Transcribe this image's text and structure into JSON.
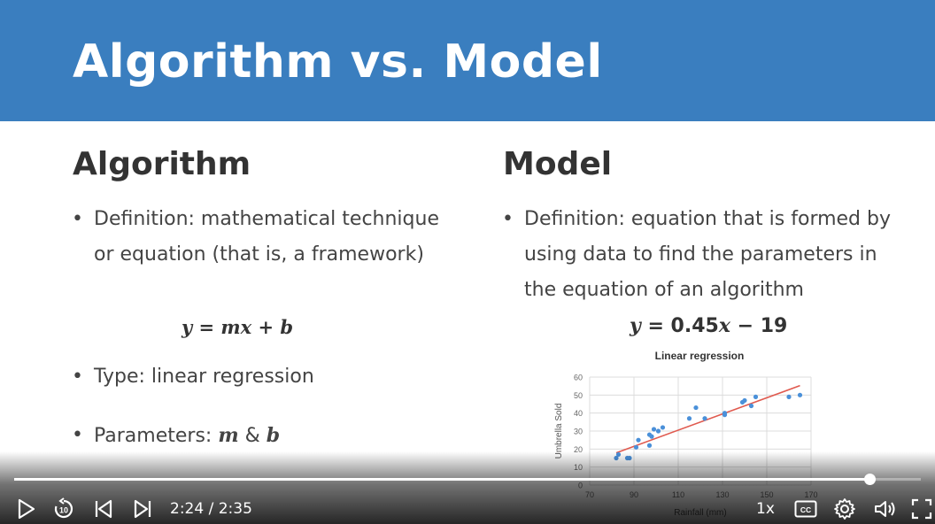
{
  "slide": {
    "title": "Algorithm vs. Model",
    "algorithm": {
      "heading": "Algorithm",
      "definition_line1": "Definition: mathematical technique",
      "definition_line2": "or equation (that is, a framework)",
      "equation": "y = mx + b",
      "type": "Type: linear regression",
      "parameters_prefix": "Parameters: ",
      "parameters_m": "m",
      "parameters_amp": " & ",
      "parameters_b": "b"
    },
    "model": {
      "heading": "Model",
      "definition_line1": "Definition: equation that is formed by",
      "definition_line2": "using data to find the parameters in",
      "definition_line3": "the equation of an algorithm",
      "equation_y": "y",
      "equation_mid": " = 0.45",
      "equation_x": "x",
      "equation_end": " − 19"
    }
  },
  "chart_data": {
    "type": "scatter",
    "title": "Linear regression",
    "xlabel": "Rainfall (mm)",
    "ylabel": "Umbrella Sold",
    "xlim": [
      70,
      170
    ],
    "ylim": [
      0,
      60
    ],
    "xticks": [
      70,
      90,
      110,
      130,
      150,
      170
    ],
    "yticks": [
      0,
      10,
      20,
      30,
      40,
      50,
      60
    ],
    "xtick_labels": [
      "70",
      "90",
      "110",
      "130",
      "150",
      "170"
    ],
    "ytick_labels": [
      "0",
      "10",
      "20",
      "30",
      "40",
      "50",
      "60"
    ],
    "points": [
      [
        82,
        15
      ],
      [
        83,
        17
      ],
      [
        87,
        15
      ],
      [
        88,
        15
      ],
      [
        91,
        21
      ],
      [
        92,
        25
      ],
      [
        97,
        28
      ],
      [
        97,
        22
      ],
      [
        98,
        27
      ],
      [
        99,
        31
      ],
      [
        101,
        30
      ],
      [
        103,
        32
      ],
      [
        115,
        37
      ],
      [
        118,
        43
      ],
      [
        122,
        37
      ],
      [
        131,
        40
      ],
      [
        131,
        39
      ],
      [
        139,
        46
      ],
      [
        140,
        47
      ],
      [
        143,
        44
      ],
      [
        145,
        49
      ],
      [
        160,
        49
      ],
      [
        165,
        50
      ]
    ],
    "trendline": {
      "slope": 0.45,
      "intercept": -19,
      "x_range": [
        82,
        165
      ]
    },
    "grid": true,
    "point_color": "#4a90d9",
    "line_color": "#e05a4f"
  },
  "player": {
    "current_time": "2:24",
    "separator": " / ",
    "duration": "2:35",
    "progress": 0.943,
    "speed": "1x",
    "cc_label": "CC",
    "skip_back_label": "10"
  }
}
